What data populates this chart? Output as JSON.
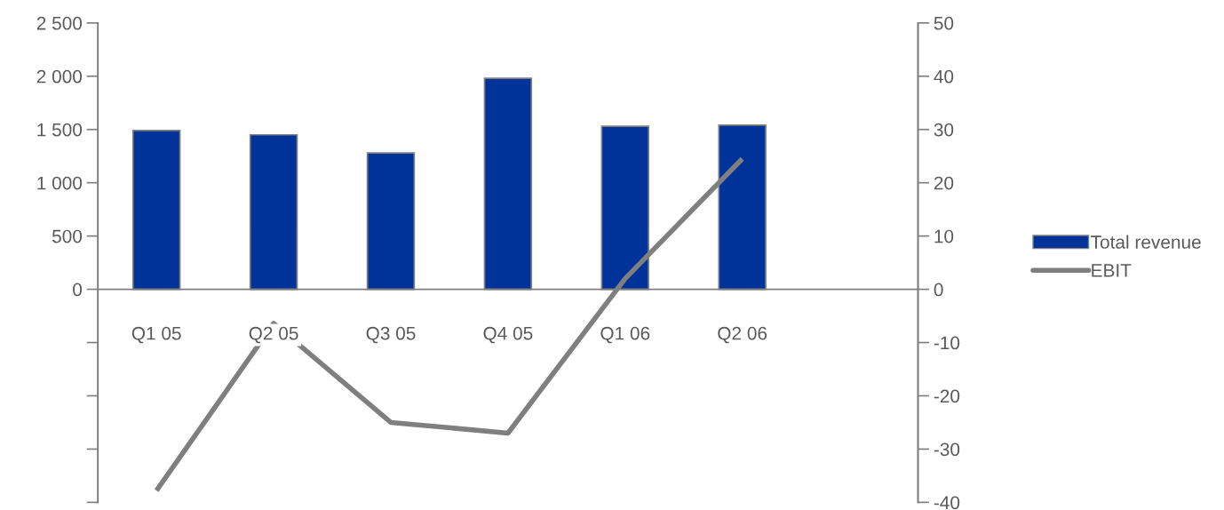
{
  "chart_data": {
    "type": "bar",
    "categories": [
      "Q1 05",
      "Q2 05",
      "Q3 05",
      "Q4 05",
      "Q1 06",
      "Q2 06",
      null
    ],
    "series": [
      {
        "name": "Total revenue",
        "color": "#003399",
        "values": [
          1490,
          1450,
          1280,
          1980,
          1530,
          1540,
          null
        ]
      },
      {
        "name": "EBIT",
        "type": "line",
        "axis": "y2",
        "color": "#7f7f7f",
        "values": [
          -37.8,
          -6.4,
          -25,
          -27,
          2,
          24.5,
          null
        ]
      }
    ],
    "ylim": [
      -2000,
      2500
    ],
    "yticks": [
      {
        "value": -2000,
        "label": null
      },
      {
        "value": -1500,
        "label": null
      },
      {
        "value": -1000,
        "label": null
      },
      {
        "value": -500,
        "label": null
      },
      {
        "value": 0,
        "label": "0"
      },
      {
        "value": 500,
        "label": "500"
      },
      {
        "value": 1000,
        "label": "1 000"
      },
      {
        "value": 1500,
        "label": "1 500"
      },
      {
        "value": 2000,
        "label": "2 000"
      },
      {
        "value": 2500,
        "label": "2 500"
      }
    ],
    "y2lim": [
      -40,
      50
    ],
    "y2ticks": [
      -40,
      -30,
      -20,
      -10,
      0,
      10,
      20,
      30,
      40,
      50
    ],
    "legend": "right",
    "grid": false,
    "marker": "none",
    "line_style": "solid"
  }
}
